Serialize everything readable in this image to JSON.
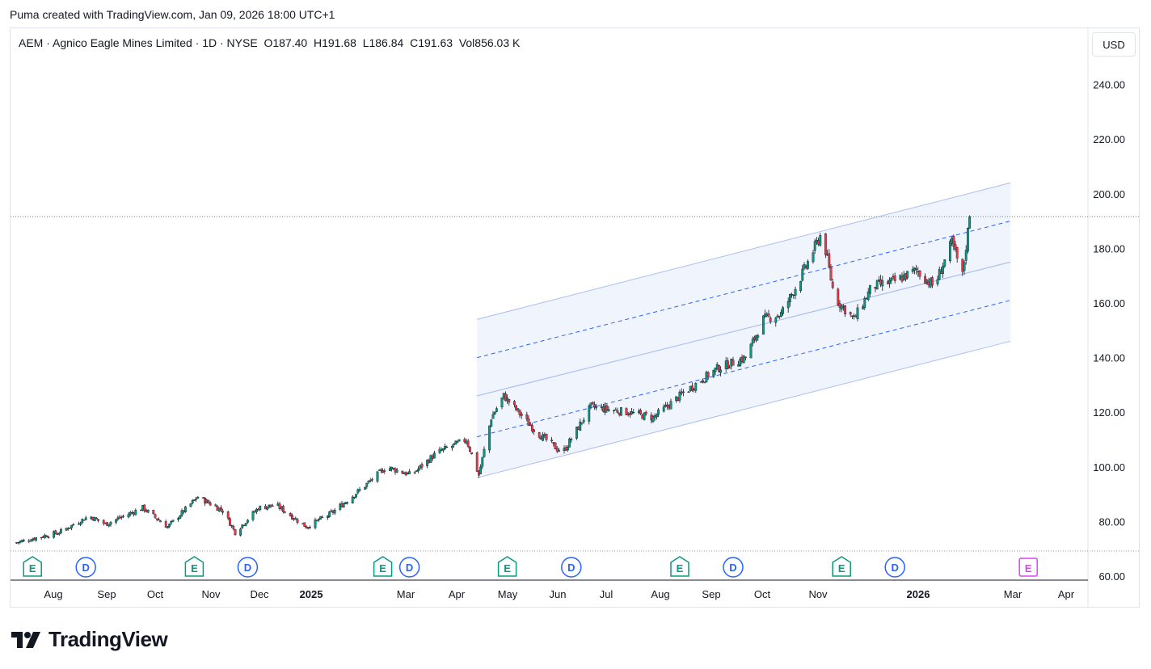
{
  "header": {
    "created_by": "Puma created with TradingView.com, Jan 09, 2026 18:00 UTC+1"
  },
  "legend": {
    "symbol": "AEM · Agnico Eagle Mines Limited · 1D · NYSE",
    "o_label": "O",
    "o_value": "187.40",
    "h_label": "H",
    "h_value": "191.68",
    "l_label": "L",
    "l_value": "186.84",
    "c_label": "C",
    "c_value": "191.63",
    "vol_label": "Vol",
    "vol_value": "856.03 K"
  },
  "currency_button": "USD",
  "brand": {
    "name": "TradingView"
  },
  "colors": {
    "up": "#089981",
    "down": "#f23645",
    "channel_fill": "#eef3fd",
    "channel_line": "#a9bff0",
    "channel_dash": "#2962ff",
    "earnings": "#089981",
    "dividend": "#2962ff",
    "future_earnings": "#e040fb"
  },
  "chart_data": {
    "type": "candlestick",
    "ylim": [
      60,
      250
    ],
    "y_ticks": [
      "240.00",
      "220.00",
      "200.00",
      "180.00",
      "160.00",
      "140.00",
      "120.00",
      "100.00",
      "80.00",
      "60.00"
    ],
    "x_ticks": [
      "Aug",
      "Sep",
      "Oct",
      "Nov",
      "Dec",
      "2025",
      "Mar",
      "Apr",
      "May",
      "Jun",
      "Jul",
      "Aug",
      "Sep",
      "Oct",
      "Nov",
      "2026",
      "Mar",
      "Apr"
    ],
    "last_price": 191.63,
    "price_path": [
      {
        "date": "2024-07-20",
        "close": 72
      },
      {
        "date": "2024-08-15",
        "close": 76
      },
      {
        "date": "2024-09-01",
        "close": 82
      },
      {
        "date": "2024-09-10",
        "close": 79
      },
      {
        "date": "2024-10-01",
        "close": 85
      },
      {
        "date": "2024-10-15",
        "close": 78
      },
      {
        "date": "2024-11-01",
        "close": 89
      },
      {
        "date": "2024-11-15",
        "close": 84
      },
      {
        "date": "2024-11-22",
        "close": 76
      },
      {
        "date": "2024-12-05",
        "close": 85
      },
      {
        "date": "2024-12-15",
        "close": 86
      },
      {
        "date": "2025-01-01",
        "close": 78
      },
      {
        "date": "2025-01-15",
        "close": 83
      },
      {
        "date": "2025-02-01",
        "close": 92
      },
      {
        "date": "2025-02-15",
        "close": 100
      },
      {
        "date": "2025-03-01",
        "close": 97
      },
      {
        "date": "2025-03-15",
        "close": 105
      },
      {
        "date": "2025-04-01",
        "close": 110
      },
      {
        "date": "2025-04-08",
        "close": 97
      },
      {
        "date": "2025-04-15",
        "close": 118
      },
      {
        "date": "2025-04-22",
        "close": 126
      },
      {
        "date": "2025-05-10",
        "close": 113
      },
      {
        "date": "2025-05-25",
        "close": 105
      },
      {
        "date": "2025-06-10",
        "close": 122
      },
      {
        "date": "2025-07-01",
        "close": 120
      },
      {
        "date": "2025-07-15",
        "close": 118
      },
      {
        "date": "2025-08-01",
        "close": 127
      },
      {
        "date": "2025-08-20",
        "close": 136
      },
      {
        "date": "2025-09-05",
        "close": 140
      },
      {
        "date": "2025-09-15",
        "close": 154
      },
      {
        "date": "2025-09-25",
        "close": 156
      },
      {
        "date": "2025-10-05",
        "close": 168
      },
      {
        "date": "2025-10-18",
        "close": 186
      },
      {
        "date": "2025-10-25",
        "close": 162
      },
      {
        "date": "2025-11-05",
        "close": 154
      },
      {
        "date": "2025-11-15",
        "close": 166
      },
      {
        "date": "2025-11-28",
        "close": 168
      },
      {
        "date": "2025-12-10",
        "close": 172
      },
      {
        "date": "2025-12-20",
        "close": 166
      },
      {
        "date": "2025-12-30",
        "close": 182
      },
      {
        "date": "2026-01-05",
        "close": 170
      },
      {
        "date": "2026-01-09",
        "close": 191.63
      }
    ],
    "channel": {
      "start": "2025-04-07",
      "end": "2026-02-01",
      "upper": [
        154,
        204
      ],
      "upper_mid": [
        140,
        190
      ],
      "middle": [
        126,
        175
      ],
      "lower_mid": [
        111,
        161
      ],
      "lower": [
        96,
        146
      ]
    },
    "events": [
      {
        "type": "E",
        "date": "2024-07-31"
      },
      {
        "type": "D",
        "date": "2024-08-30"
      },
      {
        "type": "E",
        "date": "2024-10-30"
      },
      {
        "type": "D",
        "date": "2024-11-29"
      },
      {
        "type": "E",
        "date": "2025-02-13"
      },
      {
        "type": "D",
        "date": "2025-02-28"
      },
      {
        "type": "E",
        "date": "2025-04-24"
      },
      {
        "type": "D",
        "date": "2025-05-30"
      },
      {
        "type": "E",
        "date": "2025-07-30"
      },
      {
        "type": "D",
        "date": "2025-08-29"
      },
      {
        "type": "E",
        "date": "2025-10-29"
      },
      {
        "type": "D",
        "date": "2025-11-28"
      },
      {
        "type": "E",
        "date": "2026-02-11"
      }
    ]
  }
}
